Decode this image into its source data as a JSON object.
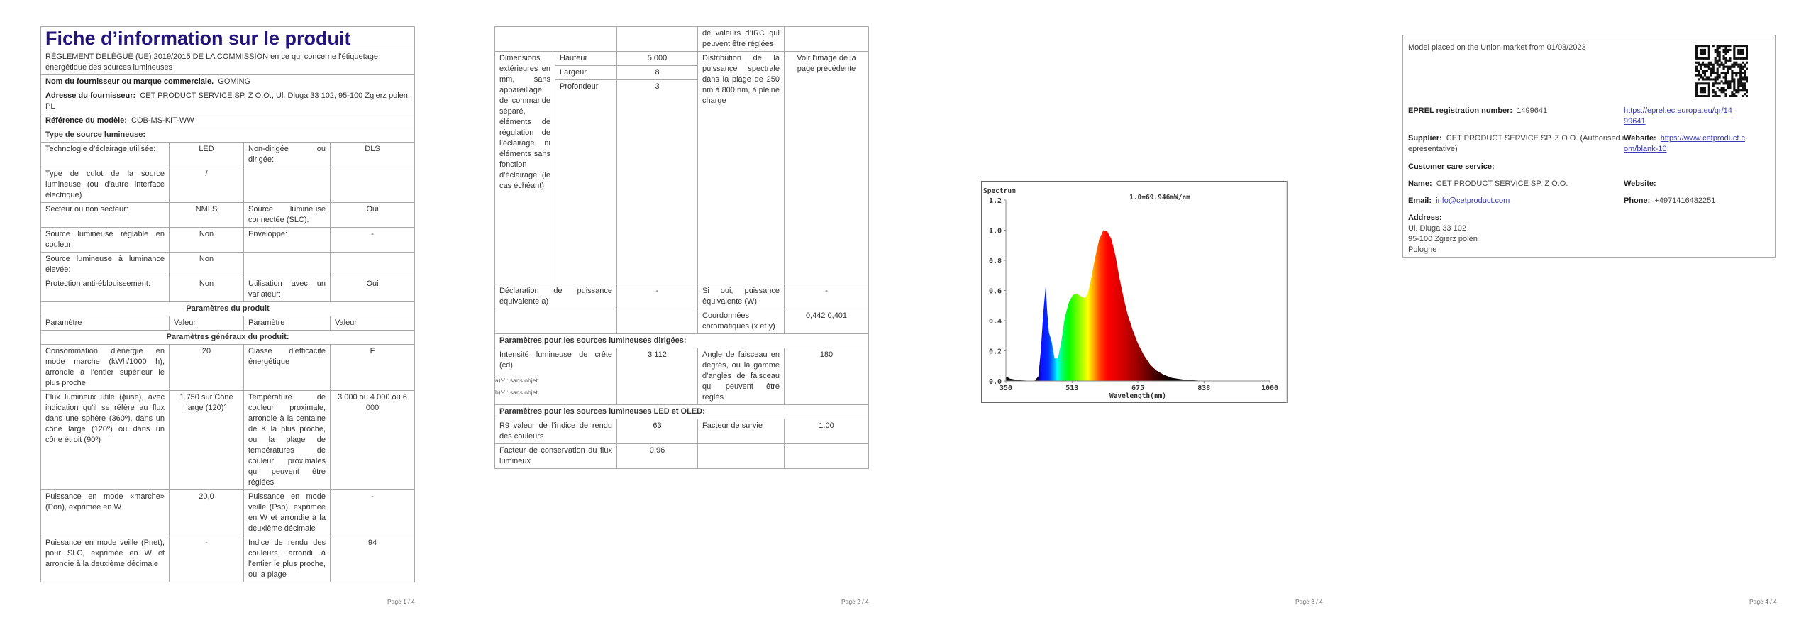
{
  "page1": {
    "title": "Fiche d’information sur le produit",
    "regulation": "RÈGLEMENT DÉLÉGUÉ (UE) 2019/2015 DE LA COMMISSION en ce qui concerne l'étiquetage énergétique des sources lumineuses",
    "supplier_label": "Nom du fournisseur ou marque commerciale.",
    "supplier_value": "GOMING",
    "address_label": "Adresse du fournisseur:",
    "address_value": "CET PRODUCT SERVICE SP. Z O.O., Ul. Dluga 33 102, 95-100 Zgierz polen, PL",
    "model_label": "Référence du modèle:",
    "model_value": "COB-MS-KIT-WW",
    "type_label": "Type de source lumineuse:",
    "type_rows": [
      [
        "Technologie d’éclairage utilisée:",
        "LED",
        "Non-dirigée ou dirigée:",
        "DLS"
      ],
      [
        "Type de culot de la source lumineuse (ou d’autre interface électrique)",
        "/",
        "",
        ""
      ],
      [
        "Secteur ou non secteur:",
        "NMLS",
        "Source lumineuse connectée (SLC):",
        "Oui"
      ],
      [
        "Source lumineuse réglable en couleur:",
        "Non",
        "Enveloppe:",
        "-"
      ],
      [
        "Source lumineuse à luminance élevée:",
        "Non",
        "",
        ""
      ],
      [
        "Protection anti-éblouissement:",
        "Non",
        "Utilisation avec un variateur:",
        "Oui"
      ]
    ],
    "params_heading": "Paramètres du produit",
    "headers": [
      "Paramètre",
      "Valeur",
      "Paramètre",
      "Valeur"
    ],
    "general_heading": "Paramètres généraux du produit:",
    "general_rows": [
      [
        "Consommation d’énergie en mode marche (kWh/1000 h), arrondie à l’entier supérieur le plus proche",
        "20",
        "Classe d’efficacité énergétique",
        "F"
      ],
      [
        "Flux lumineux utile (ϕuse), avec indication qu’il se réfère au flux dans une sphère (360º), dans un cône large (120º) ou dans un cône étroit (90º)",
        "1 750 sur Cône large (120)°",
        "Température de couleur proximale, arrondie à la centaine de K la plus proche, ou la plage de températures de couleur proximales qui peuvent être réglées",
        "3 000 ou 4 000 ou 6 000"
      ],
      [
        "Puissance en mode «marche» (Pon), exprimée en W",
        "20,0",
        "Puissance en mode veille (Psb), exprimée en W et arrondie à la deuxième décimale",
        "-"
      ],
      [
        "Puissance en mode veille (Pnet), pour SLC, exprimée en W et arrondie à la deuxième décimale",
        "-",
        "Indice de rendu des couleurs, arrondi à l’entier le plus proche, ou la plage",
        "94"
      ]
    ],
    "page_label": "Page 1 / 4"
  },
  "page2": {
    "continued": [
      "",
      "",
      "de valeurs d’IRC qui peuvent être réglées",
      ""
    ],
    "dimensions_label": "Dimensions extérieures en mm, sans appareillage de commande séparé, éléments de régulation de l’éclairage ni éléments sans fonction d’éclairage (le cas échéant)",
    "dimensions": [
      {
        "name": "Hauteur",
        "value": "5 000"
      },
      {
        "name": "Largeur",
        "value": "8"
      },
      {
        "name": "Profondeur",
        "value": "3"
      }
    ],
    "spd_label": "Distribution de la puissance spectrale dans la plage de 250 nm à 800 nm, à pleine charge",
    "spd_value": "Voir l'image de la page précédente",
    "rows_a": [
      [
        "Déclaration de puissance équivalente a)",
        "-",
        "Si oui, puissance équivalente (W)",
        "-"
      ],
      [
        "",
        "",
        "Coordonnées chromatiques (x et y)",
        "0,442 0,401"
      ]
    ],
    "directed_heading": "Paramètres pour les sources lumineuses dirigées:",
    "rows_b": [
      [
        "Intensité lumineuse de crête (cd)",
        "3 112",
        "Angle de faisceau en degrés, ou la gamme d’angles de faisceau qui peuvent être réglés",
        "180"
      ]
    ],
    "led_heading": "Paramètres pour les sources lumineuses LED et OLED:",
    "rows_c": [
      [
        "R9 valeur de l’indice de rendu des couleurs",
        "63",
        "Facteur de survie",
        "1,00"
      ],
      [
        "Facteur de conservation du flux lumineux",
        "0,96",
        "",
        ""
      ]
    ],
    "footnotes": [
      "a)‘-’ : sans objet;",
      "b)‘-’ : sans objet;"
    ],
    "page_label": "Page 2 / 4"
  },
  "page3": {
    "page_label": "Page 3 / 4",
    "chart_data": {
      "type": "area",
      "title": "Spectrum",
      "annotation": "1.0=69.946mW/nm",
      "xlabel": "Wavelength(nm)",
      "ylabel": "",
      "xlim": [
        350,
        1000
      ],
      "ylim": [
        0,
        1.2
      ],
      "xticks": [
        "350",
        "513",
        "675",
        "838",
        "1000"
      ],
      "yticks": [
        "0.0",
        "0.2",
        "0.4",
        "0.6",
        "0.8",
        "1.0",
        "1.2"
      ],
      "grid": false,
      "x": [
        350,
        360,
        380,
        420,
        430,
        436,
        442,
        448,
        452,
        456,
        462,
        470,
        478,
        486,
        495,
        505,
        515,
        525,
        535,
        545,
        552,
        560,
        570,
        580,
        590,
        600,
        610,
        620,
        630,
        640,
        650,
        662,
        675,
        690,
        705,
        720,
        740,
        760,
        790,
        830,
        880,
        1000
      ],
      "y": [
        0.03,
        0.015,
        0.005,
        0.0,
        0.03,
        0.2,
        0.45,
        0.63,
        0.45,
        0.32,
        0.27,
        0.15,
        0.15,
        0.25,
        0.42,
        0.52,
        0.57,
        0.58,
        0.56,
        0.55,
        0.58,
        0.68,
        0.82,
        0.94,
        1.0,
        0.99,
        0.94,
        0.83,
        0.68,
        0.55,
        0.44,
        0.34,
        0.25,
        0.17,
        0.11,
        0.07,
        0.04,
        0.02,
        0.008,
        0.002,
        0.0,
        0.0
      ]
    }
  },
  "page4": {
    "market": "Model placed on the Union market from 01/03/2023",
    "eprel_label": "EPREL registration number:",
    "eprel_value": "1499641",
    "eprel_link_1": "https://eprel.ec.europa.eu/qr/14",
    "eprel_link_2": "99641",
    "supplier_label": "Supplier:",
    "supplier_value_1": "CET PRODUCT SERVICE SP. Z O.O. (Authorised r",
    "supplier_value_2": "epresentative)",
    "website_label": "Website:",
    "website_link_1": "https://www.cetproduct.c",
    "website_link_2": "om/blank-10",
    "care_label": "Customer care service:",
    "name_label": "Name:",
    "name_value": "CET PRODUCT SERVICE SP. Z O.O.",
    "care_website_label": "Website:",
    "email_label": "Email:",
    "email_value": "info@cetproduct.com",
    "phone_label": "Phone:",
    "phone_value": "+4971416432251",
    "address_label": "Address:",
    "address_lines": [
      "Ul. Dluga 33 102",
      "95-100 Zgierz polen",
      "Pologne"
    ],
    "qr_icon": "qr-code",
    "page_label": "Page 4 / 4"
  }
}
